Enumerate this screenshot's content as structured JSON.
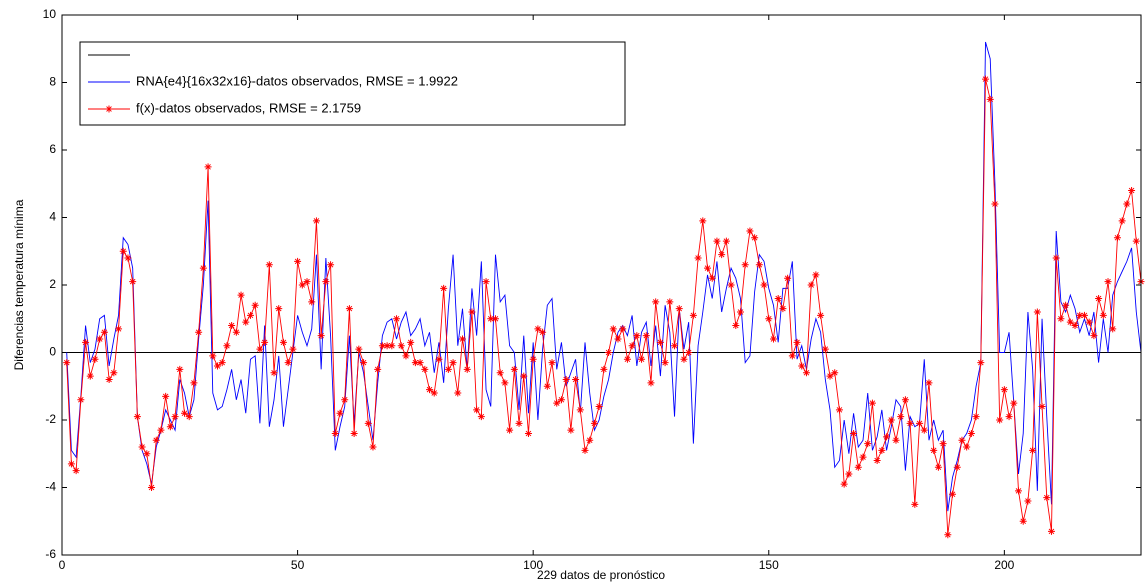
{
  "chart_data": {
    "type": "line",
    "x_label": "229 datos de pronóstico",
    "y_label": "Diferencias temperatura mínima",
    "xlim": [
      0,
      229
    ],
    "xticks": [
      0,
      50,
      100,
      150,
      200
    ],
    "ylim": [
      -6,
      10
    ],
    "yticks": [
      -6,
      -4,
      -2,
      0,
      2,
      4,
      6,
      8,
      10
    ],
    "reference_line": {
      "y": 0,
      "color": "#000000"
    },
    "x": [
      1,
      2,
      3,
      4,
      5,
      6,
      7,
      8,
      9,
      10,
      11,
      12,
      13,
      14,
      15,
      16,
      17,
      18,
      19,
      20,
      21,
      22,
      23,
      24,
      25,
      26,
      27,
      28,
      29,
      30,
      31,
      32,
      33,
      34,
      35,
      36,
      37,
      38,
      39,
      40,
      41,
      42,
      43,
      44,
      45,
      46,
      47,
      48,
      49,
      50,
      51,
      52,
      53,
      54,
      55,
      56,
      57,
      58,
      59,
      60,
      61,
      62,
      63,
      64,
      65,
      66,
      67,
      68,
      69,
      70,
      71,
      72,
      73,
      74,
      75,
      76,
      77,
      78,
      79,
      80,
      81,
      82,
      83,
      84,
      85,
      86,
      87,
      88,
      89,
      90,
      91,
      92,
      93,
      94,
      95,
      96,
      97,
      98,
      99,
      100,
      101,
      102,
      103,
      104,
      105,
      106,
      107,
      108,
      109,
      110,
      111,
      112,
      113,
      114,
      115,
      116,
      117,
      118,
      119,
      120,
      121,
      122,
      123,
      124,
      125,
      126,
      127,
      128,
      129,
      130,
      131,
      132,
      133,
      134,
      135,
      136,
      137,
      138,
      139,
      140,
      141,
      142,
      143,
      144,
      145,
      146,
      147,
      148,
      149,
      150,
      151,
      152,
      153,
      154,
      155,
      156,
      157,
      158,
      159,
      160,
      161,
      162,
      163,
      164,
      165,
      166,
      167,
      168,
      169,
      170,
      171,
      172,
      173,
      174,
      175,
      176,
      177,
      178,
      179,
      180,
      181,
      182,
      183,
      184,
      185,
      186,
      187,
      188,
      189,
      190,
      191,
      192,
      193,
      194,
      195,
      196,
      197,
      198,
      199,
      200,
      201,
      202,
      203,
      204,
      205,
      206,
      207,
      208,
      209,
      210,
      211,
      212,
      213,
      214,
      215,
      216,
      217,
      218,
      219,
      220,
      221,
      222,
      223,
      224,
      225,
      226,
      227,
      228,
      229
    ],
    "series": [
      {
        "name": "RNA{e4}{16x32x16}-datos observados, RMSE = 1.9922",
        "color": "#0000ff",
        "marker": "none",
        "values": [
          0,
          -2.9,
          -3.1,
          -1.3,
          0.8,
          -0.3,
          0.1,
          1.0,
          1.1,
          -0.4,
          0.4,
          1.1,
          3.4,
          3.2,
          2.5,
          -1.9,
          -2.9,
          -3.3,
          -3.9,
          -2.8,
          -2.3,
          -1.7,
          -2.0,
          -2.3,
          -0.8,
          -1.2,
          -1.9,
          -1.4,
          0.4,
          2.0,
          4.5,
          -1.2,
          -1.7,
          -1.6,
          -1.1,
          -0.5,
          -1.4,
          -0.8,
          -1.8,
          -0.2,
          -0.1,
          -2.1,
          0.8,
          -2.2,
          -1.4,
          -0.1,
          -2.2,
          -1.1,
          0.0,
          1.1,
          0.6,
          0.2,
          0.7,
          2.9,
          -0.5,
          2.8,
          0.5,
          -2.9,
          -2.2,
          -1.6,
          0.5,
          -2.1,
          0.0,
          -0.6,
          -1.6,
          -2.6,
          -0.9,
          0.5,
          0.9,
          1.0,
          0.4,
          0.9,
          1.2,
          0.5,
          0.7,
          1.0,
          0.2,
          0.6,
          -0.6,
          0.3,
          -0.9,
          1.3,
          2.9,
          0.2,
          1.3,
          -0.5,
          1.9,
          0.5,
          2.7,
          -1.1,
          -1.6,
          2.9,
          1.5,
          1.7,
          0.2,
          0.0,
          -1.7,
          0.5,
          -1.8,
          0.3,
          -2.0,
          0.1,
          1.4,
          1.6,
          -0.5,
          0.3,
          -1.0,
          -0.6,
          -0.2,
          -1.8,
          0.3,
          -1.2,
          -2.3,
          -2.0,
          -1.3,
          -0.8,
          0.0,
          0.6,
          0.8,
          0.5,
          1.1,
          -0.4,
          0.6,
          0.9,
          -0.4,
          0.8,
          -0.7,
          1.4,
          0.6,
          -1.9,
          1.3,
          0.1,
          0.9,
          -2.7,
          0.2,
          1.2,
          2.3,
          1.6,
          2.7,
          1.2,
          1.9,
          2.5,
          2.2,
          1.6,
          -0.3,
          -0.1,
          1.8,
          2.9,
          2.7,
          1.9,
          1.4,
          0.3,
          1.9,
          1.9,
          2.7,
          -0.2,
          0.2,
          -0.5,
          0.4,
          1.0,
          0.6,
          -0.8,
          -1.7,
          -3.4,
          -3.2,
          -2.0,
          -3.0,
          -1.8,
          -2.8,
          -2.6,
          -1.2,
          -2.9,
          -2.5,
          -1.7,
          -2.9,
          -2.2,
          -1.4,
          -1.6,
          -3.5,
          -1.9,
          -2.2,
          -2.1,
          -0.2,
          -2.6,
          -2.0,
          -2.6,
          -2.3,
          -4.7,
          -3.7,
          -3.2,
          -2.6,
          -2.4,
          -2.0,
          -1.0,
          -0.3,
          9.2,
          8.7,
          5.0,
          0.0,
          0.0,
          0.6,
          -1.5,
          -3.6,
          -2.4,
          1.2,
          -0.5,
          -4.1,
          1.0,
          -1.9,
          -4.5,
          3.6,
          1.5,
          1.2,
          1.7,
          1.3,
          0.6,
          1.0,
          0.5,
          1.2,
          -0.3,
          1.0,
          0.0,
          1.7,
          2.1,
          2.4,
          2.7,
          3.1,
          1.2,
          0.0
        ]
      },
      {
        "name": "f(x)-datos observados, RMSE = 2.1759",
        "color": "#ff0000",
        "marker": "star",
        "values": [
          -0.3,
          -3.3,
          -3.5,
          -1.4,
          0.3,
          -0.7,
          -0.2,
          0.4,
          0.6,
          -0.8,
          -0.6,
          0.7,
          3.0,
          2.8,
          2.1,
          -1.9,
          -2.8,
          -3.0,
          -4.0,
          -2.6,
          -2.3,
          -1.3,
          -2.2,
          -1.9,
          -0.5,
          -1.8,
          -1.9,
          -0.9,
          0.6,
          2.5,
          5.5,
          -0.1,
          -0.4,
          -0.3,
          0.2,
          0.8,
          0.6,
          1.7,
          0.9,
          1.1,
          1.4,
          0.1,
          0.3,
          2.6,
          -0.6,
          1.3,
          0.3,
          -0.3,
          0.1,
          2.7,
          2.0,
          2.1,
          1.5,
          3.9,
          0.5,
          2.1,
          2.6,
          -2.4,
          -1.8,
          -1.4,
          1.3,
          -2.4,
          0.1,
          -0.3,
          -2.1,
          -2.8,
          -0.5,
          0.2,
          0.2,
          0.2,
          1.0,
          0.2,
          -0.1,
          0.3,
          -0.3,
          -0.3,
          -0.5,
          -1.1,
          -1.2,
          -0.2,
          1.9,
          -0.5,
          -0.3,
          -1.2,
          0.4,
          -0.5,
          1.2,
          -1.7,
          -1.9,
          2.1,
          1.0,
          1.0,
          -0.6,
          -0.9,
          -2.3,
          -0.5,
          -2.1,
          -0.7,
          -2.4,
          -0.2,
          0.7,
          0.6,
          -1.0,
          -0.3,
          -1.5,
          -1.4,
          -0.8,
          -2.3,
          -0.8,
          -1.7,
          -2.9,
          -2.6,
          -2.1,
          -1.6,
          -0.5,
          0.0,
          0.7,
          0.4,
          0.7,
          -0.2,
          0.2,
          0.5,
          -0.2,
          0.5,
          -0.9,
          1.5,
          0.3,
          -0.3,
          1.5,
          0.2,
          1.3,
          -0.2,
          0.0,
          1.1,
          2.8,
          3.9,
          2.5,
          2.2,
          3.3,
          2.9,
          3.3,
          2.0,
          0.8,
          1.2,
          2.6,
          3.6,
          3.4,
          2.6,
          2.0,
          1.0,
          0.4,
          1.6,
          1.3,
          2.2,
          -0.1,
          0.3,
          -0.4,
          -0.6,
          2.0,
          2.3,
          1.1,
          0.1,
          -0.7,
          -0.6,
          -1.7,
          -3.9,
          -3.6,
          -2.4,
          -3.4,
          -3.1,
          -2.7,
          -1.5,
          -3.2,
          -2.9,
          -2.5,
          -2.0,
          -2.6,
          -1.9,
          -1.4,
          -2.1,
          -4.5,
          -2.1,
          -2.3,
          -0.9,
          -2.9,
          -3.4,
          -2.7,
          -5.4,
          -4.2,
          -3.4,
          -2.6,
          -2.8,
          -2.4,
          -1.9,
          -0.3,
          8.1,
          7.5,
          4.4,
          -2.0,
          -1.1,
          -1.9,
          -1.5,
          -4.1,
          -5.0,
          -4.4,
          -2.9,
          1.2,
          -1.6,
          -4.3,
          -5.3,
          2.8,
          1.0,
          1.4,
          0.9,
          0.8,
          1.1,
          1.1,
          0.9,
          0.5,
          1.6,
          1.1,
          2.1,
          0.7,
          3.4,
          3.9,
          4.4,
          4.8,
          3.3,
          2.1
        ]
      }
    ]
  }
}
